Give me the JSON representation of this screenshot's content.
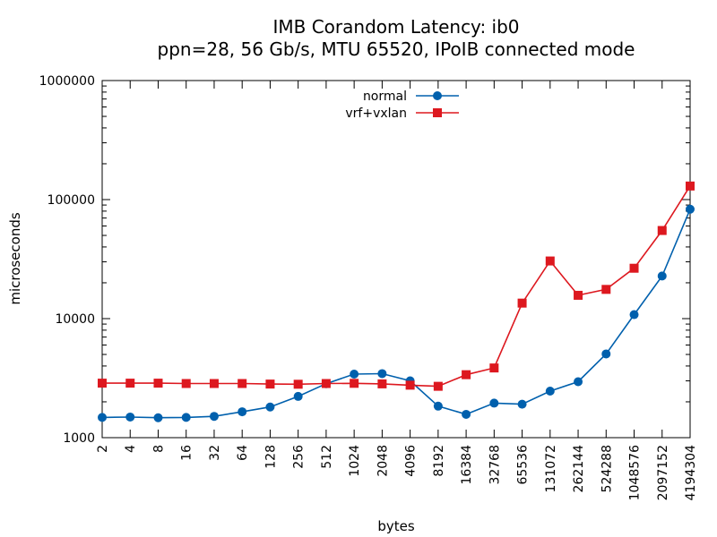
{
  "chart_data": {
    "type": "line",
    "title": "IMB Corandom Latency: ib0",
    "subtitle": "ppn=28, 56 Gb/s, MTU 65520, IPoIB connected mode",
    "xlabel": "bytes",
    "ylabel": "microseconds",
    "x_scale": "log2",
    "y_scale": "log10",
    "xlim": [
      2,
      4194304
    ],
    "ylim": [
      1000,
      1000000
    ],
    "grid": false,
    "legend_position": "top-center",
    "x_tick_labels": [
      "2",
      "4",
      "8",
      "16",
      "32",
      "64",
      "128",
      "256",
      "512",
      "1024",
      "2048",
      "4096",
      "8192",
      "16384",
      "32768",
      "65536",
      "131072",
      "262144",
      "524288",
      "1048576",
      "2097152",
      "4194304"
    ],
    "y_tick_labels": [
      "1000",
      "10000",
      "100000",
      "1000000"
    ],
    "x": [
      2,
      4,
      8,
      16,
      32,
      64,
      128,
      256,
      512,
      1024,
      2048,
      4096,
      8192,
      16384,
      32768,
      65536,
      131072,
      262144,
      524288,
      1048576,
      2097152,
      4194304
    ],
    "series": [
      {
        "name": "normal",
        "color": "#0060ad",
        "marker": "circle",
        "values": [
          1480,
          1490,
          1470,
          1480,
          1510,
          1650,
          1810,
          2220,
          2840,
          3420,
          3450,
          3000,
          1840,
          1570,
          1950,
          1910,
          2460,
          2950,
          5050,
          10800,
          22800,
          83000
        ]
      },
      {
        "name": "vrf+vxlan",
        "color": "#dd181f",
        "marker": "square",
        "values": [
          2870,
          2870,
          2870,
          2850,
          2850,
          2850,
          2820,
          2810,
          2850,
          2860,
          2830,
          2760,
          2700,
          3380,
          3850,
          13500,
          30500,
          15700,
          17600,
          26500,
          55000,
          130000
        ]
      }
    ]
  }
}
